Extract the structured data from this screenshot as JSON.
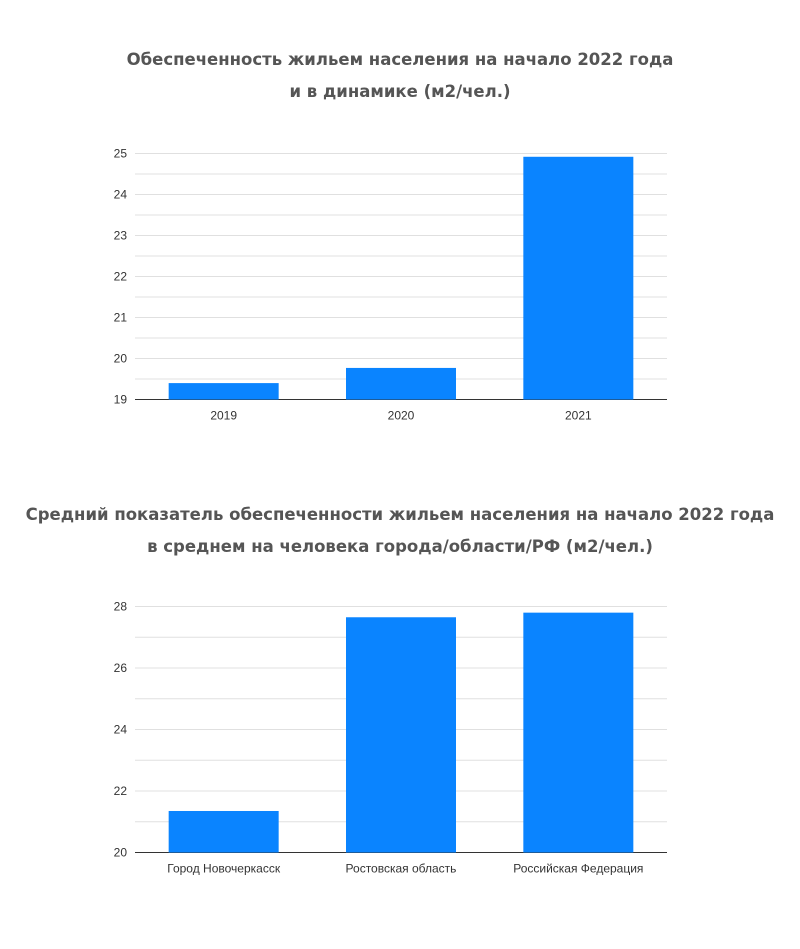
{
  "colors": {
    "bar": "#0a84ff",
    "grid": "#e0e0e0",
    "axis": "#333333",
    "title": "#555555"
  },
  "chart_data": [
    {
      "type": "bar",
      "title_lines": [
        "Обеспеченность жильем населения на начало 2022 года",
        "и в динамике (м2/чел.)"
      ],
      "categories": [
        "2019",
        "2020",
        "2021"
      ],
      "values": [
        19.4,
        19.77,
        24.92
      ],
      "ylim": [
        19,
        25
      ],
      "yticks": [
        "19",
        "20",
        "21",
        "22",
        "23",
        "24",
        "25"
      ],
      "xlabel": "",
      "ylabel": "",
      "grid": true
    },
    {
      "type": "bar",
      "title_lines": [
        "Средний показатель обеспеченности жильем населения на начало 2022 года",
        "в среднем на человека города/области/РФ (м2/чел.)"
      ],
      "categories": [
        "Город Новочеркасск",
        "Ростовская область",
        "Российская Федерация"
      ],
      "values": [
        21.35,
        27.65,
        27.8
      ],
      "ylim": [
        20,
        28
      ],
      "yticks": [
        "20",
        "22",
        "24",
        "26",
        "28"
      ],
      "xlabel": "",
      "ylabel": "",
      "grid": true
    }
  ]
}
